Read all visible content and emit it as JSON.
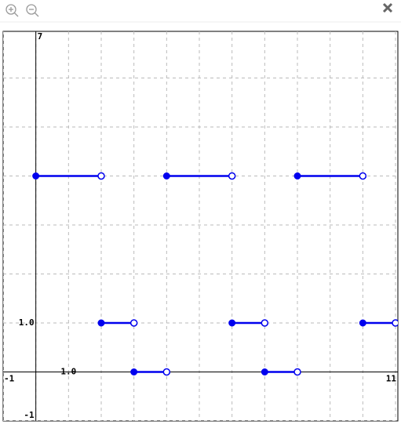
{
  "chart_data": {
    "type": "step",
    "xlim": [
      -1,
      11
    ],
    "ylim": [
      -1,
      7
    ],
    "xticks": [
      {
        "value": 1,
        "label": "1.0"
      }
    ],
    "yticks": [
      {
        "value": 1,
        "label": "1.0"
      }
    ],
    "grid": true,
    "color": "#0000ee",
    "closed_end": "left",
    "segments": [
      {
        "x": [
          0,
          2
        ],
        "y": 4
      },
      {
        "x": [
          2,
          3
        ],
        "y": 1
      },
      {
        "x": [
          3,
          4
        ],
        "y": 0
      },
      {
        "x": [
          4,
          6
        ],
        "y": 4
      },
      {
        "x": [
          6,
          7
        ],
        "y": 1
      },
      {
        "x": [
          7,
          8
        ],
        "y": 0
      },
      {
        "x": [
          8,
          10
        ],
        "y": 4
      },
      {
        "x": [
          10,
          11
        ],
        "y": 1
      }
    ]
  }
}
